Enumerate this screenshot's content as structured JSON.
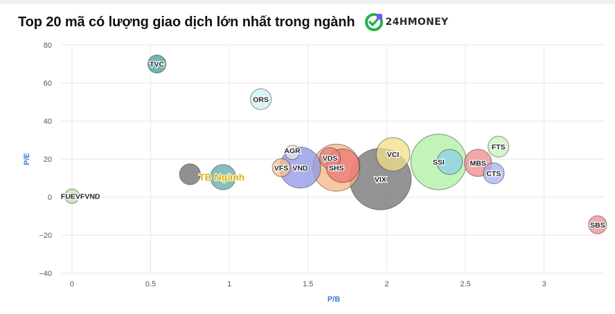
{
  "title": "Top 20 mã có lượng giao dịch lớn nhất trong ngành",
  "logo": {
    "text": "24HMONEY",
    "icon": "money-coin-icon",
    "color": "#22b14c",
    "accent": "#7c4dff"
  },
  "chart_data": {
    "type": "scatter",
    "variant": "bubble",
    "xlabel": "P/B",
    "ylabel": "P/E",
    "xlim": [
      -0.07,
      3.38
    ],
    "ylim": [
      -40,
      80
    ],
    "xticks": [
      0,
      0.5,
      1,
      1.5,
      2,
      2.5,
      3
    ],
    "xtick_labels": [
      "0",
      "0.5",
      "1",
      "1.5",
      "2",
      "2.5",
      "3"
    ],
    "yticks": [
      -40,
      -20,
      0,
      20,
      40,
      60,
      80
    ],
    "ytick_labels": [
      "−40",
      "−20",
      "0",
      "20",
      "40",
      "60",
      "80"
    ],
    "grid": true,
    "points": [
      {
        "label": "FUEVFVND",
        "x": 0.0,
        "y": 0.5,
        "size": 1,
        "color": "#b9e6a8"
      },
      {
        "label": "TVC",
        "x": 0.54,
        "y": 70,
        "size": 2,
        "color": "#3e9c9c"
      },
      {
        "label": "ORS",
        "x": 1.2,
        "y": 51.5,
        "size": 3,
        "color": "#c9f2ee"
      },
      {
        "label": "",
        "x": 0.75,
        "y": 12,
        "size": 3,
        "color": "#6b6b6b"
      },
      {
        "label": "",
        "x": 0.96,
        "y": 10.5,
        "size": 5,
        "color": "#5fa8a8"
      },
      {
        "label": "VFS",
        "x": 1.33,
        "y": 15.5,
        "size": 2,
        "color": "#f6c08e"
      },
      {
        "label": "AGR",
        "x": 1.4,
        "y": 23.5,
        "size": 1,
        "color": "#e7e7e7"
      },
      {
        "label": "VND",
        "x": 1.45,
        "y": 15.5,
        "size": 16,
        "color": "#8f96e6"
      },
      {
        "label": "VDS",
        "x": 1.64,
        "y": 20.5,
        "size": 3,
        "color": "#e58080"
      },
      {
        "label": "SHS",
        "x": 1.68,
        "y": 15.5,
        "size": 22,
        "color": "#f5b580"
      },
      {
        "label": "",
        "x": 1.72,
        "y": 16.5,
        "size": 10,
        "color": "#ef7575"
      },
      {
        "label": "VIX",
        "x": 1.96,
        "y": 9.5,
        "size": 40,
        "color": "#707070"
      },
      {
        "label": "VCI",
        "x": 2.04,
        "y": 22.5,
        "size": 10,
        "color": "#f2e08a"
      },
      {
        "label": "SSI",
        "x": 2.33,
        "y": 18.5,
        "size": 32,
        "color": "#aef0a2"
      },
      {
        "label": "",
        "x": 2.4,
        "y": 18.5,
        "size": 5,
        "color": "#8bd0ea"
      },
      {
        "label": "MBS",
        "x": 2.58,
        "y": 18,
        "size": 6,
        "color": "#ef8a8a"
      },
      {
        "label": "FTS",
        "x": 2.71,
        "y": 26.5,
        "size": 3,
        "color": "#c8f2b8"
      },
      {
        "label": "CTS",
        "x": 2.68,
        "y": 12.5,
        "size": 3,
        "color": "#a6b0f0"
      },
      {
        "label": "SBS",
        "x": 3.34,
        "y": -14.5,
        "size": 2,
        "color": "#f08e8e"
      }
    ],
    "average": {
      "label": "TB Ngành",
      "x": 0.96,
      "y": 10.5,
      "label_color": "#d9b400"
    }
  }
}
